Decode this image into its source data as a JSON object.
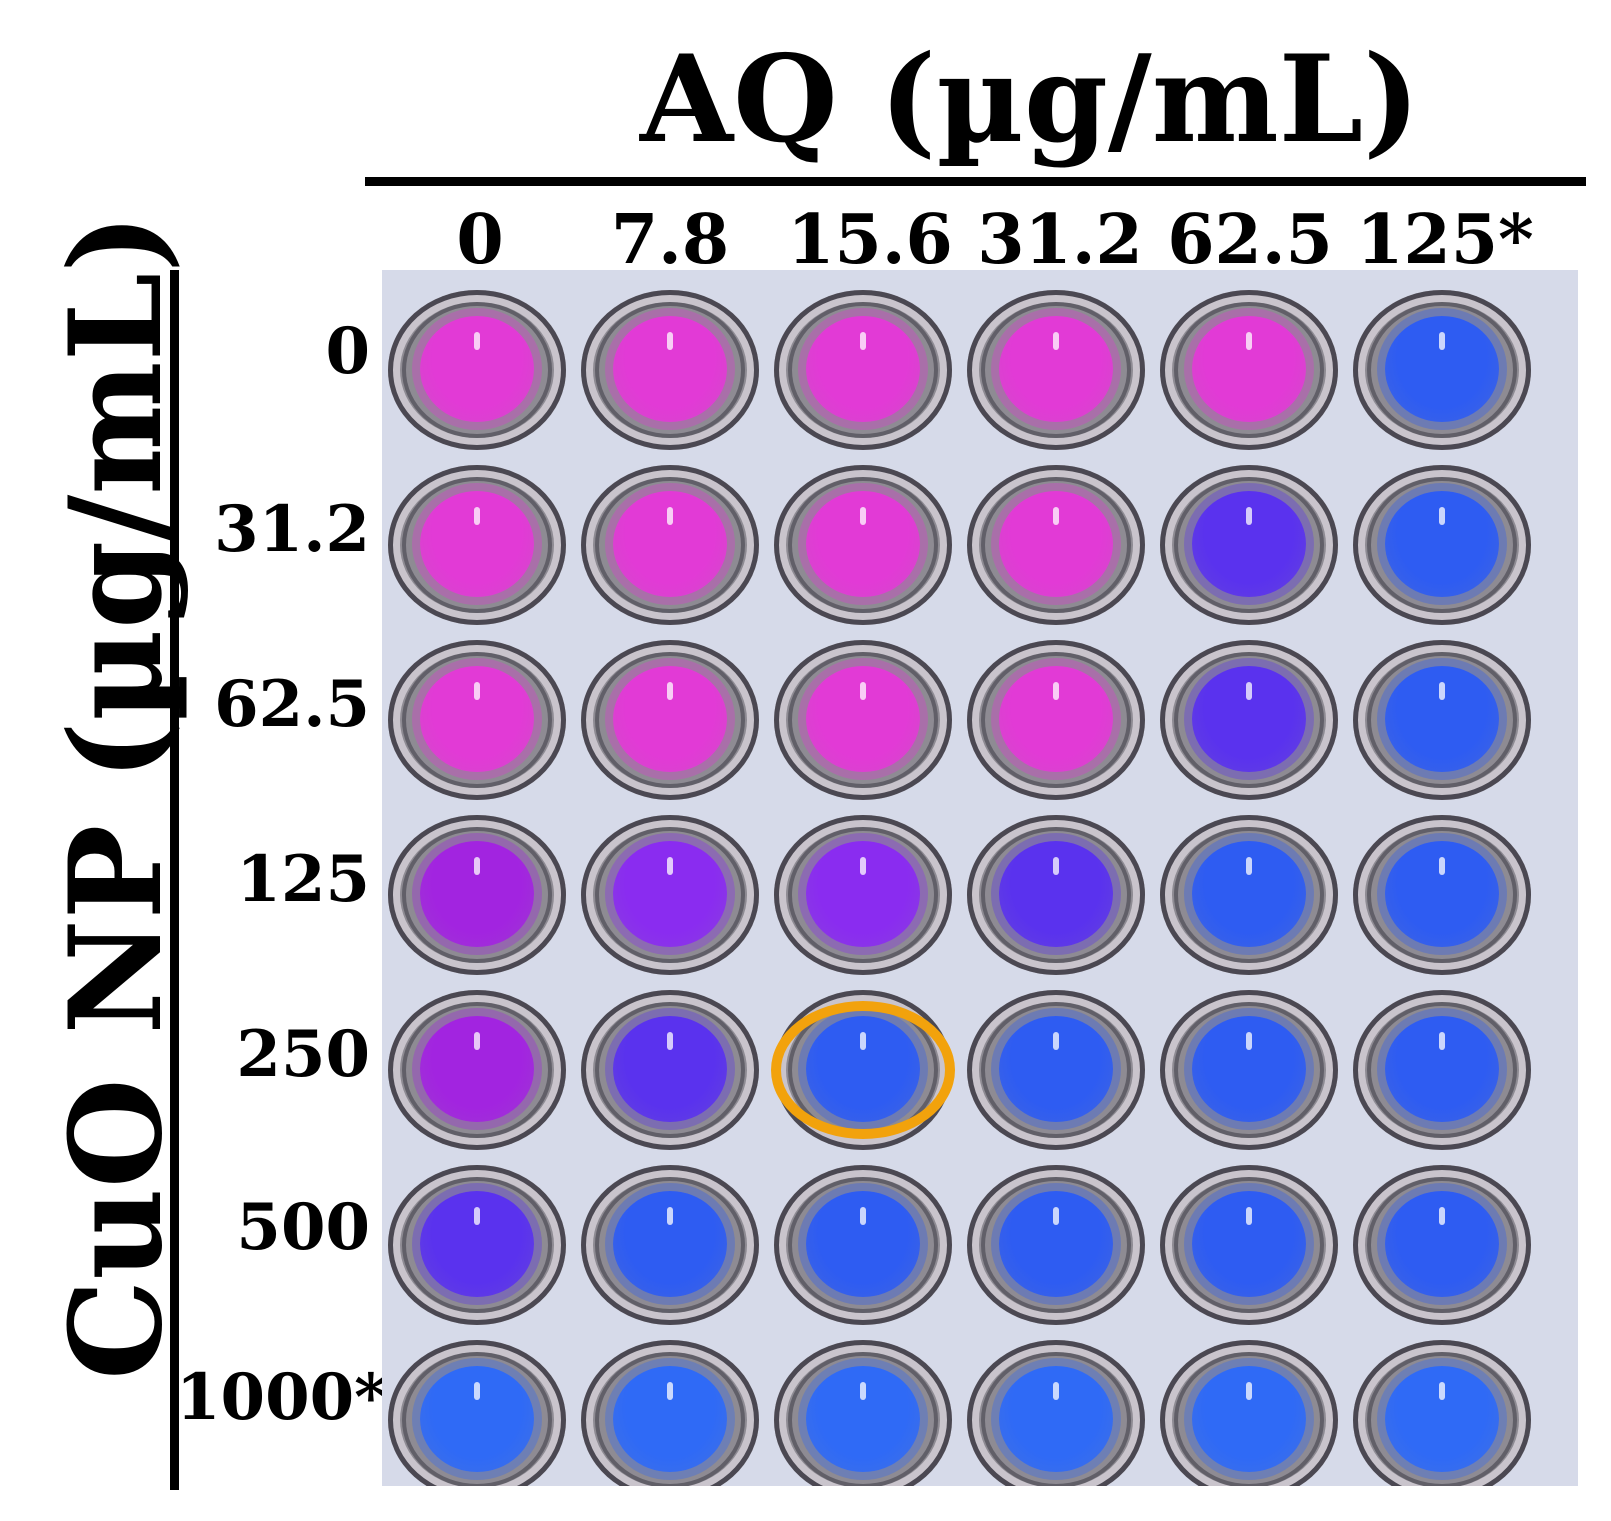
{
  "figure": {
    "column_axis_title": "AQ (µg/mL)",
    "row_axis_title": "CuO NP (µg/mL)",
    "column_labels": [
      "0",
      "7.8",
      "15.6",
      "31.2",
      "62.5",
      "125*"
    ],
    "row_labels": [
      "0",
      "31.2",
      "62.5",
      "125",
      "250",
      "500",
      "1000*"
    ]
  },
  "colors": {
    "pink": "#e23ad6",
    "purple_pink": "#a224e0",
    "purple": "#8a2cf0",
    "violet": "#5a32ee",
    "blue": "#2e5cf2",
    "bright_blue": "#2f6af6",
    "highlight_ring": "#f2a20c"
  },
  "plate": {
    "wells": [
      [
        "pink",
        "pink",
        "pink",
        "pink",
        "pink",
        "blue"
      ],
      [
        "pink",
        "pink",
        "pink",
        "pink",
        "violet",
        "blue"
      ],
      [
        "pink",
        "pink",
        "pink",
        "pink",
        "violet",
        "blue"
      ],
      [
        "purple_pink",
        "purple",
        "purple",
        "violet",
        "blue",
        "blue"
      ],
      [
        "purple_pink",
        "violet",
        "blue",
        "blue",
        "blue",
        "blue"
      ],
      [
        "violet",
        "blue",
        "blue",
        "blue",
        "blue",
        "blue"
      ],
      [
        "bright_blue",
        "bright_blue",
        "bright_blue",
        "bright_blue",
        "bright_blue",
        "bright_blue"
      ]
    ],
    "highlighted_well": {
      "row": 4,
      "column": 2
    }
  }
}
